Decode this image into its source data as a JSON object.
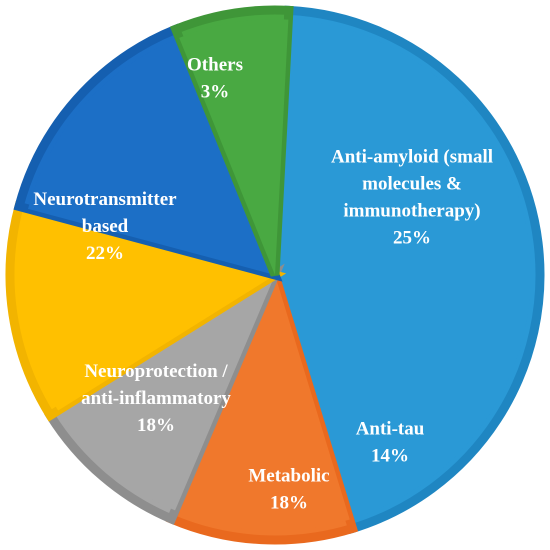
{
  "chart_data": {
    "type": "pie",
    "title": "",
    "slices": [
      {
        "label_lines": [
          "Anti-amyloid (small",
          "molecules &",
          "immunotherapy)"
        ],
        "percent_label": "25%",
        "value": 25,
        "color": "#2A99D6",
        "border": "#1F86C2"
      },
      {
        "label_lines": [
          "Anti-tau"
        ],
        "percent_label": "14%",
        "value": 14,
        "color": "#F0782C",
        "border": "#E9691E"
      },
      {
        "label_lines": [
          "Metabolic"
        ],
        "percent_label": "18%",
        "value": 18,
        "color": "#A6A6A6",
        "border": "#8E8E8E"
      },
      {
        "label_lines": [
          "Neuroprotection /",
          "anti-inflammatory"
        ],
        "percent_label": "18%",
        "value": 18,
        "color": "#FFC000",
        "border": "#F2B400"
      },
      {
        "label_lines": [
          "Neurotransmitter",
          "based"
        ],
        "percent_label": "22%",
        "value": 22,
        "color": "#1C6FC6",
        "border": "#155FB0"
      },
      {
        "label_lines": [
          "Others"
        ],
        "percent_label": "3%",
        "value": 3,
        "color": "#49A942",
        "border": "#3F9638"
      }
    ]
  }
}
